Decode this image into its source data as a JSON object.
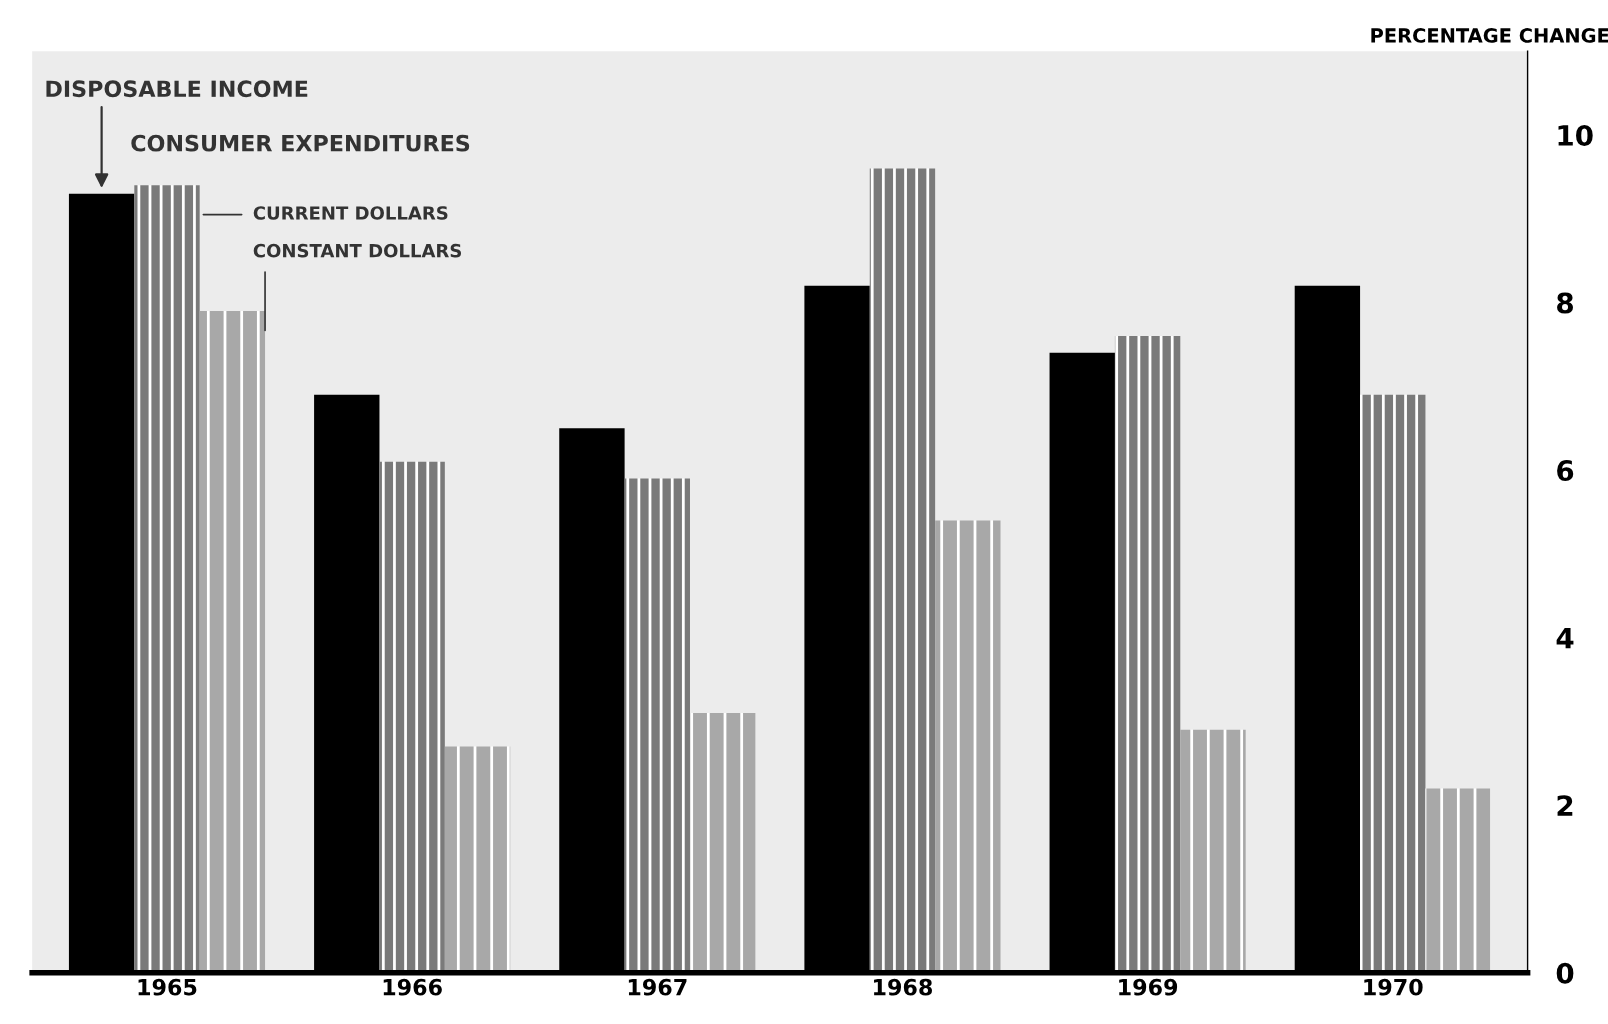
{
  "chart_data": {
    "type": "bar",
    "ylabel": "PERCENTAGE CHANGE",
    "categories": [
      "1965",
      "1966",
      "1967",
      "1968",
      "1969",
      "1970"
    ],
    "series": [
      {
        "name": "DISPOSABLE INCOME",
        "color": "#000000",
        "values": [
          9.3,
          6.9,
          6.5,
          8.2,
          7.4,
          8.2
        ]
      },
      {
        "name": "CURRENT DOLLARS",
        "color": "#7a7a7a",
        "values": [
          9.4,
          6.1,
          5.9,
          9.6,
          7.6,
          6.9
        ]
      },
      {
        "name": "CONSTANT DOLLARS",
        "color": "#a8a8a8",
        "values": [
          7.9,
          2.7,
          3.1,
          5.4,
          2.9,
          2.2
        ]
      }
    ],
    "annotations": [
      "CONSUMER EXPENDITURES"
    ],
    "ylim": [
      0,
      11
    ],
    "yticks": [
      0,
      2,
      4,
      6,
      8,
      10
    ],
    "grid": false,
    "legend": false
  }
}
